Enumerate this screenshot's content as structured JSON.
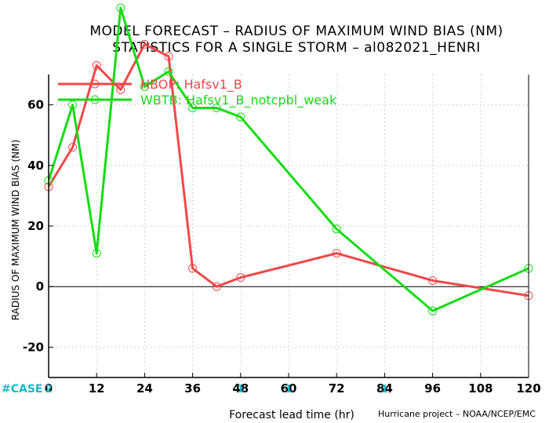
{
  "header": {
    "title_line1": "MODEL FORECAST – RADIUS OF MAXIMUM WIND BIAS (NM)",
    "title_line2": "STATISTICS FOR A SINGLE STORM – al082021_HENRI"
  },
  "footer": {
    "credit": "Hurricane project – NOAA/NCEP/EMC",
    "case_label": "#CASE",
    "case_first": "2"
  },
  "chart_data": {
    "type": "line",
    "title": "MODEL FORECAST – RADIUS OF MAXIMUM WIND BIAS (NM)",
    "subtitle": "STATISTICS FOR A SINGLE STORM – al082021_HENRI",
    "xlabel": "Forecast lead time (hr)",
    "ylabel": "RADIUS OF MAXIMUM WIND BIAS (NM)",
    "xlim": [
      0,
      120
    ],
    "ylim": [
      -30,
      70
    ],
    "xticks": [
      0,
      12,
      24,
      36,
      48,
      60,
      72,
      84,
      96,
      108,
      120
    ],
    "yticks": [
      -20,
      0,
      20,
      40,
      60
    ],
    "grid": true,
    "zero_line": true,
    "legend": "top-left",
    "series": [
      {
        "name": "HBOP: Hafsv1_B",
        "color": "#f04848",
        "x": [
          0,
          6,
          12,
          18,
          24,
          30,
          36,
          42,
          48,
          72,
          96,
          120
        ],
        "y": [
          33,
          46,
          73,
          65,
          80,
          76,
          6,
          0,
          3,
          11,
          2,
          -3
        ]
      },
      {
        "name": "WBTB: Hafsv1_B_notcpbl_weak",
        "color": "#14dc14",
        "x": [
          0,
          6,
          12,
          18,
          24,
          30,
          36,
          42,
          48,
          72,
          96,
          120
        ],
        "y": [
          35,
          60,
          11,
          92,
          66,
          71,
          59,
          59,
          56,
          19,
          -8,
          6
        ]
      }
    ],
    "case_counts": {
      "x": [
        0,
        48,
        60,
        84
      ],
      "values": [
        "2",
        "1",
        "1",
        "1"
      ]
    }
  }
}
